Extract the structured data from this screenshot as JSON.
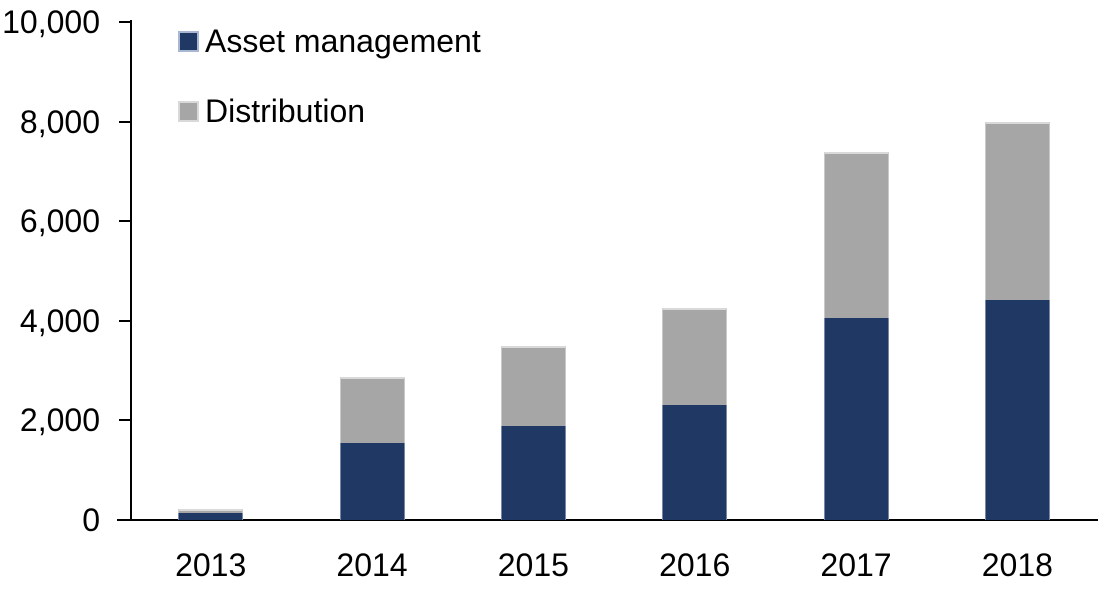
{
  "chart_data": {
    "type": "bar",
    "stacked": true,
    "title": "",
    "xlabel": "",
    "ylabel": "",
    "categories": [
      "2013",
      "2014",
      "2015",
      "2016",
      "2017",
      "2018"
    ],
    "series": [
      {
        "name": "Asset management",
        "color": "#1f3864",
        "border_color": "#a9b8d0",
        "values": [
          140,
          1550,
          1890,
          2310,
          4050,
          4420
        ]
      },
      {
        "name": "Distribution",
        "color": "#a6a6a6",
        "border_color": "#d9d9d9",
        "values": [
          90,
          1320,
          1610,
          1940,
          3340,
          3580
        ]
      }
    ],
    "totals": [
      230,
      2870,
      3500,
      4250,
      7390,
      8000
    ],
    "ylim": [
      0,
      10000
    ],
    "ytick_interval": 2000,
    "ytick_labels": [
      "0",
      "2,000",
      "4,000",
      "6,000",
      "8,000",
      "10,000"
    ],
    "grid": false,
    "legend_position": "top-left",
    "axis_color": "#000000",
    "background_color": "#ffffff"
  }
}
